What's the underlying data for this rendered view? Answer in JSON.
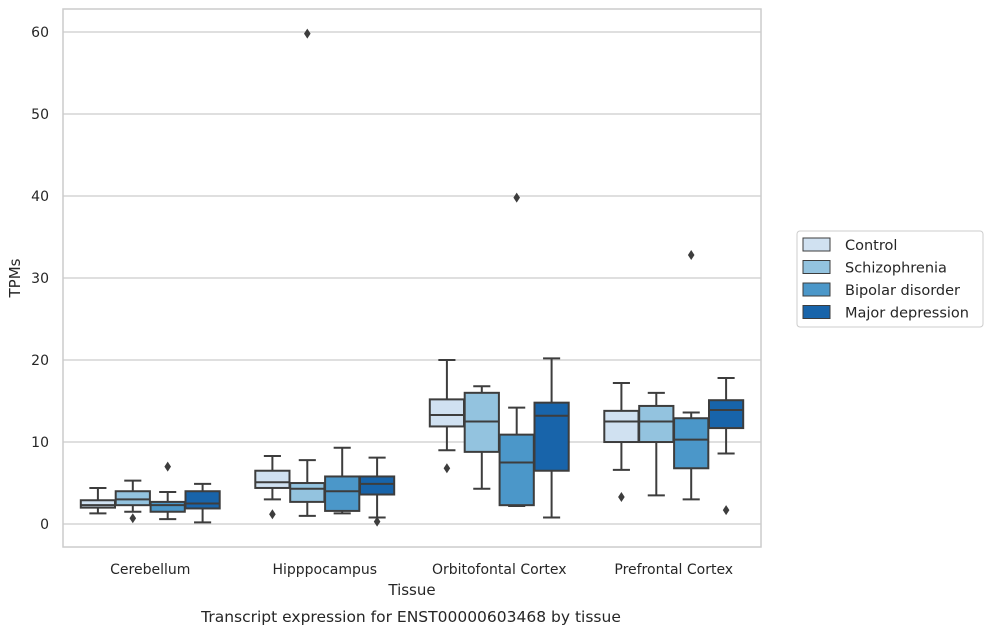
{
  "chart_data": {
    "type": "box",
    "xlabel": "Tissue",
    "ylabel": "TPMs",
    "caption": "Transcript expression for ENST00000603468 by tissue",
    "ylim": [
      -2.8,
      62.8
    ],
    "yticks": [
      0,
      10,
      20,
      30,
      40,
      50,
      60
    ],
    "grid": "horizontal",
    "legend_position": "right",
    "categories": [
      "Cerebellum",
      "Hipppocampus",
      "Orbitofontal Cortex",
      "Prefrontal Cortex"
    ],
    "series": [
      {
        "name": "Control",
        "color": "#d0e1f1",
        "boxes": [
          {
            "whislo": 1.3,
            "q1": 2.0,
            "med": 2.3,
            "q3": 2.9,
            "whishi": 4.4,
            "fliers": []
          },
          {
            "whislo": 3.0,
            "q1": 4.4,
            "med": 5.1,
            "q3": 6.5,
            "whishi": 8.3,
            "fliers": [
              1.2
            ]
          },
          {
            "whislo": 9.0,
            "q1": 11.9,
            "med": 13.3,
            "q3": 15.2,
            "whishi": 20.0,
            "fliers": [
              6.8
            ]
          },
          {
            "whislo": 6.6,
            "q1": 10.0,
            "med": 12.5,
            "q3": 13.8,
            "whishi": 17.2,
            "fliers": [
              3.3
            ]
          }
        ]
      },
      {
        "name": "Schizophrenia",
        "color": "#93c3df",
        "boxes": [
          {
            "whislo": 1.5,
            "q1": 2.3,
            "med": 3.0,
            "q3": 4.0,
            "whishi": 5.3,
            "fliers": [
              0.7
            ]
          },
          {
            "whislo": 1.0,
            "q1": 2.7,
            "med": 4.3,
            "q3": 5.0,
            "whishi": 7.8,
            "fliers": [
              59.8
            ]
          },
          {
            "whislo": 4.3,
            "q1": 8.8,
            "med": 12.5,
            "q3": 16.0,
            "whishi": 16.8,
            "fliers": []
          },
          {
            "whislo": 3.5,
            "q1": 10.0,
            "med": 12.5,
            "q3": 14.4,
            "whishi": 16.0,
            "fliers": []
          }
        ]
      },
      {
        "name": "Bipolar disorder",
        "color": "#4b97c9",
        "boxes": [
          {
            "whislo": 0.6,
            "q1": 1.5,
            "med": 2.3,
            "q3": 2.7,
            "whishi": 3.9,
            "fliers": [
              7.0
            ]
          },
          {
            "whislo": 1.3,
            "q1": 1.6,
            "med": 4.0,
            "q3": 5.8,
            "whishi": 9.3,
            "fliers": []
          },
          {
            "whislo": 2.2,
            "q1": 2.3,
            "med": 7.5,
            "q3": 10.9,
            "whishi": 14.2,
            "fliers": [
              39.8
            ]
          },
          {
            "whislo": 3.0,
            "q1": 6.8,
            "med": 10.3,
            "q3": 12.9,
            "whishi": 13.6,
            "fliers": [
              32.8
            ]
          }
        ]
      },
      {
        "name": "Major depression",
        "color": "#1864aa",
        "boxes": [
          {
            "whislo": 0.2,
            "q1": 1.9,
            "med": 2.5,
            "q3": 4.0,
            "whishi": 4.9,
            "fliers": []
          },
          {
            "whislo": 0.8,
            "q1": 3.6,
            "med": 4.9,
            "q3": 5.8,
            "whishi": 8.1,
            "fliers": [
              0.3
            ]
          },
          {
            "whislo": 0.8,
            "q1": 6.5,
            "med": 13.2,
            "q3": 14.8,
            "whishi": 20.2,
            "fliers": []
          },
          {
            "whislo": 8.6,
            "q1": 11.7,
            "med": 13.9,
            "q3": 15.1,
            "whishi": 17.8,
            "fliers": [
              1.7
            ]
          }
        ]
      }
    ]
  }
}
